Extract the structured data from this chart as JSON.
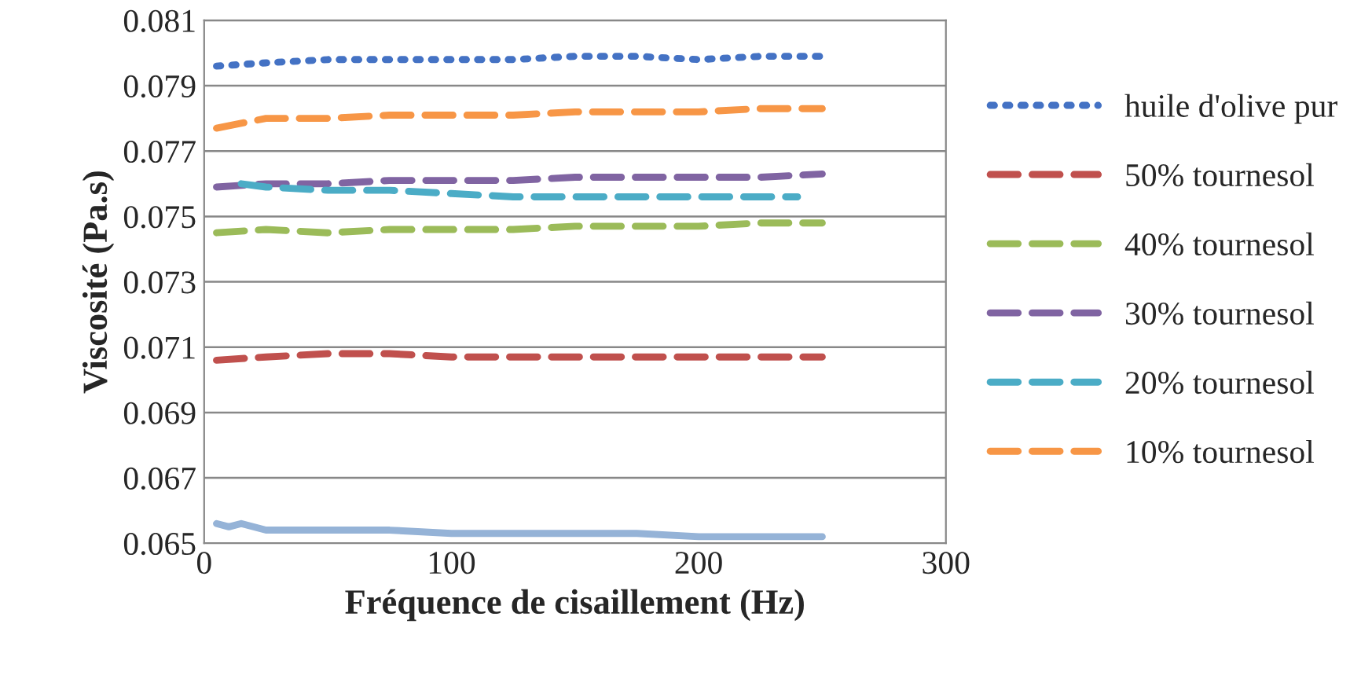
{
  "chart_data": {
    "type": "line",
    "xlabel": "Fréquence de cisaillement (Hz)",
    "ylabel": "Viscosité (Pa.s)",
    "x": [
      5,
      25,
      50,
      75,
      100,
      125,
      150,
      175,
      200,
      225,
      250
    ],
    "xlim": [
      0,
      300
    ],
    "xticks": [
      0,
      100,
      200,
      300
    ],
    "ylim": [
      0.065,
      0.081
    ],
    "yticks": [
      {
        "value": 0.065,
        "label": "0.065"
      },
      {
        "value": 0.067,
        "label": "0.067"
      },
      {
        "value": 0.069,
        "label": "0.069"
      },
      {
        "value": 0.071,
        "label": "0.071"
      },
      {
        "value": 0.073,
        "label": "0.073"
      },
      {
        "value": 0.075,
        "label": "0.075"
      },
      {
        "value": 0.077,
        "label": "0.077"
      },
      {
        "value": 0.079,
        "label": "0.079"
      },
      {
        "value": 0.081,
        "label": "0.081"
      }
    ],
    "grid": "y",
    "legend": "right",
    "series": [
      {
        "name": "huile d'olive pur",
        "color": "#4472c4",
        "line_style": "dotted",
        "values": [
          0.0796,
          0.0797,
          0.0798,
          0.0798,
          0.0798,
          0.0798,
          0.0799,
          0.0799,
          0.0798,
          0.0799,
          0.0799
        ]
      },
      {
        "name": "50% tournesol",
        "color": "#c0504d",
        "line_style": "dashed",
        "values": [
          0.0706,
          0.0707,
          0.0708,
          0.0708,
          0.0707,
          0.0707,
          0.0707,
          0.0707,
          0.0707,
          0.0707,
          0.0707
        ]
      },
      {
        "name": "40% tournesol",
        "color": "#9bbb59",
        "line_style": "dashed",
        "values": [
          0.0745,
          0.0746,
          0.0745,
          0.0746,
          0.0746,
          0.0746,
          0.0747,
          0.0747,
          0.0747,
          0.0748,
          0.0748
        ]
      },
      {
        "name": "30% tournesol",
        "color": "#8064a2",
        "line_style": "dashed",
        "values": [
          0.0759,
          0.076,
          0.076,
          0.0761,
          0.0761,
          0.0761,
          0.0762,
          0.0762,
          0.0762,
          0.0762,
          0.0763
        ]
      },
      {
        "name": "20% tournesol",
        "color": "#4bacc6",
        "line_style": "dashed",
        "x": [
          15,
          25,
          50,
          75,
          100,
          125,
          150,
          175,
          200,
          225,
          240
        ],
        "values": [
          0.076,
          0.0759,
          0.0758,
          0.0758,
          0.0757,
          0.0756,
          0.0756,
          0.0756,
          0.0756,
          0.0756,
          0.0756
        ]
      },
      {
        "name": "10% tournesol",
        "color": "#f79646",
        "line_style": "dashed",
        "values": [
          0.0777,
          0.078,
          0.078,
          0.0781,
          0.0781,
          0.0781,
          0.0782,
          0.0782,
          0.0782,
          0.0783,
          0.0783
        ]
      },
      {
        "color": "#95b3d7",
        "line_style": "solid",
        "x": [
          5,
          10,
          15,
          25,
          50,
          75,
          100,
          125,
          150,
          175,
          200,
          225,
          250
        ],
        "values": [
          0.0656,
          0.0655,
          0.0656,
          0.0654,
          0.0654,
          0.0654,
          0.0653,
          0.0653,
          0.0653,
          0.0653,
          0.0652,
          0.0652,
          0.0652
        ]
      }
    ]
  }
}
